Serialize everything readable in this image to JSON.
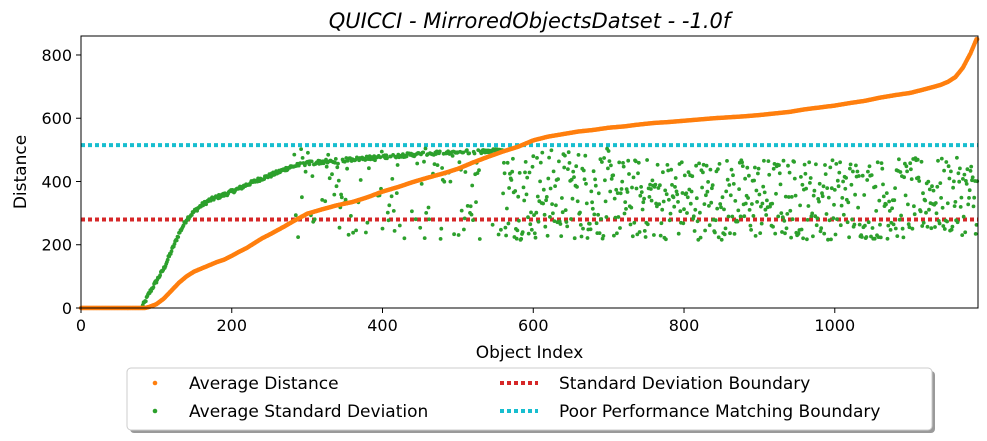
{
  "chart_data": {
    "type": "scatter",
    "title": "QUICCI - MirroredObjectsDatset - -1.0f",
    "xlabel": "Object Index",
    "ylabel": "Distance",
    "xlim": [
      0,
      1190
    ],
    "ylim": [
      0,
      860
    ],
    "xticks": [
      0,
      200,
      400,
      600,
      800,
      1000
    ],
    "yticks": [
      0,
      200,
      400,
      600,
      800
    ],
    "grid": false,
    "legend_position": "below",
    "legend": [
      {
        "label": "Average Distance",
        "kind": "marker",
        "color": "#ff7f0e"
      },
      {
        "label": "Average Standard Deviation",
        "kind": "marker",
        "color": "#2ca02c"
      },
      {
        "label": "Standard Deviation Boundary",
        "kind": "dotted-line",
        "color": "#d62728"
      },
      {
        "label": "Poor Performance Matching Boundary",
        "kind": "dotted-line",
        "color": "#17becf"
      }
    ],
    "series": [
      {
        "name": "Average Distance",
        "color": "#ff7f0e",
        "points": [
          [
            0,
            0
          ],
          [
            80,
            0
          ],
          [
            85,
            0
          ],
          [
            90,
            3
          ],
          [
            100,
            12
          ],
          [
            110,
            30
          ],
          [
            120,
            55
          ],
          [
            130,
            80
          ],
          [
            140,
            100
          ],
          [
            150,
            115
          ],
          [
            160,
            125
          ],
          [
            170,
            135
          ],
          [
            180,
            145
          ],
          [
            190,
            153
          ],
          [
            200,
            165
          ],
          [
            210,
            178
          ],
          [
            220,
            190
          ],
          [
            230,
            205
          ],
          [
            240,
            220
          ],
          [
            250,
            232
          ],
          [
            260,
            245
          ],
          [
            270,
            258
          ],
          [
            280,
            272
          ],
          [
            290,
            285
          ],
          [
            300,
            298
          ],
          [
            320,
            312
          ],
          [
            340,
            325
          ],
          [
            360,
            335
          ],
          [
            380,
            350
          ],
          [
            400,
            368
          ],
          [
            420,
            382
          ],
          [
            440,
            398
          ],
          [
            460,
            412
          ],
          [
            480,
            425
          ],
          [
            500,
            440
          ],
          [
            520,
            460
          ],
          [
            540,
            478
          ],
          [
            560,
            495
          ],
          [
            580,
            510
          ],
          [
            600,
            530
          ],
          [
            620,
            542
          ],
          [
            640,
            550
          ],
          [
            660,
            558
          ],
          [
            680,
            563
          ],
          [
            700,
            570
          ],
          [
            720,
            574
          ],
          [
            740,
            580
          ],
          [
            760,
            585
          ],
          [
            780,
            588
          ],
          [
            800,
            592
          ],
          [
            820,
            596
          ],
          [
            840,
            600
          ],
          [
            860,
            603
          ],
          [
            880,
            606
          ],
          [
            900,
            610
          ],
          [
            920,
            615
          ],
          [
            940,
            620
          ],
          [
            960,
            628
          ],
          [
            980,
            634
          ],
          [
            1000,
            640
          ],
          [
            1020,
            648
          ],
          [
            1040,
            655
          ],
          [
            1060,
            665
          ],
          [
            1080,
            673
          ],
          [
            1100,
            680
          ],
          [
            1120,
            692
          ],
          [
            1140,
            705
          ],
          [
            1150,
            715
          ],
          [
            1160,
            730
          ],
          [
            1170,
            760
          ],
          [
            1180,
            805
          ],
          [
            1188,
            850
          ]
        ]
      },
      {
        "name": "Average Standard Deviation",
        "color": "#2ca02c",
        "points": [
          [
            0,
            0
          ],
          [
            80,
            0
          ],
          [
            85,
            20
          ],
          [
            90,
            45
          ],
          [
            100,
            85
          ],
          [
            110,
            125
          ],
          [
            120,
            180
          ],
          [
            130,
            235
          ],
          [
            140,
            280
          ],
          [
            150,
            305
          ],
          [
            160,
            325
          ],
          [
            170,
            340
          ],
          [
            180,
            350
          ],
          [
            190,
            358
          ],
          [
            200,
            368
          ],
          [
            210,
            378
          ],
          [
            220,
            390
          ],
          [
            230,
            400
          ],
          [
            240,
            410
          ],
          [
            250,
            418
          ],
          [
            260,
            428
          ],
          [
            270,
            438
          ],
          [
            280,
            448
          ],
          [
            290,
            452
          ],
          [
            300,
            458
          ],
          [
            320,
            462
          ],
          [
            340,
            466
          ],
          [
            360,
            470
          ],
          [
            380,
            474
          ],
          [
            400,
            478
          ],
          [
            420,
            482
          ],
          [
            440,
            485
          ],
          [
            460,
            488
          ],
          [
            480,
            490
          ],
          [
            500,
            492
          ],
          [
            520,
            494
          ],
          [
            540,
            496
          ],
          [
            560,
            498
          ]
        ],
        "scatter_region": {
          "x_range": [
            200,
            1190
          ],
          "y_range": [
            215,
            510
          ],
          "note": "dispersed points"
        }
      }
    ],
    "reference_lines": [
      {
        "name": "Standard Deviation Boundary",
        "y": 280,
        "color": "#d62728",
        "style": "dotted"
      },
      {
        "name": "Poor Performance Matching Boundary",
        "y": 515,
        "color": "#17becf",
        "style": "dotted"
      }
    ]
  }
}
